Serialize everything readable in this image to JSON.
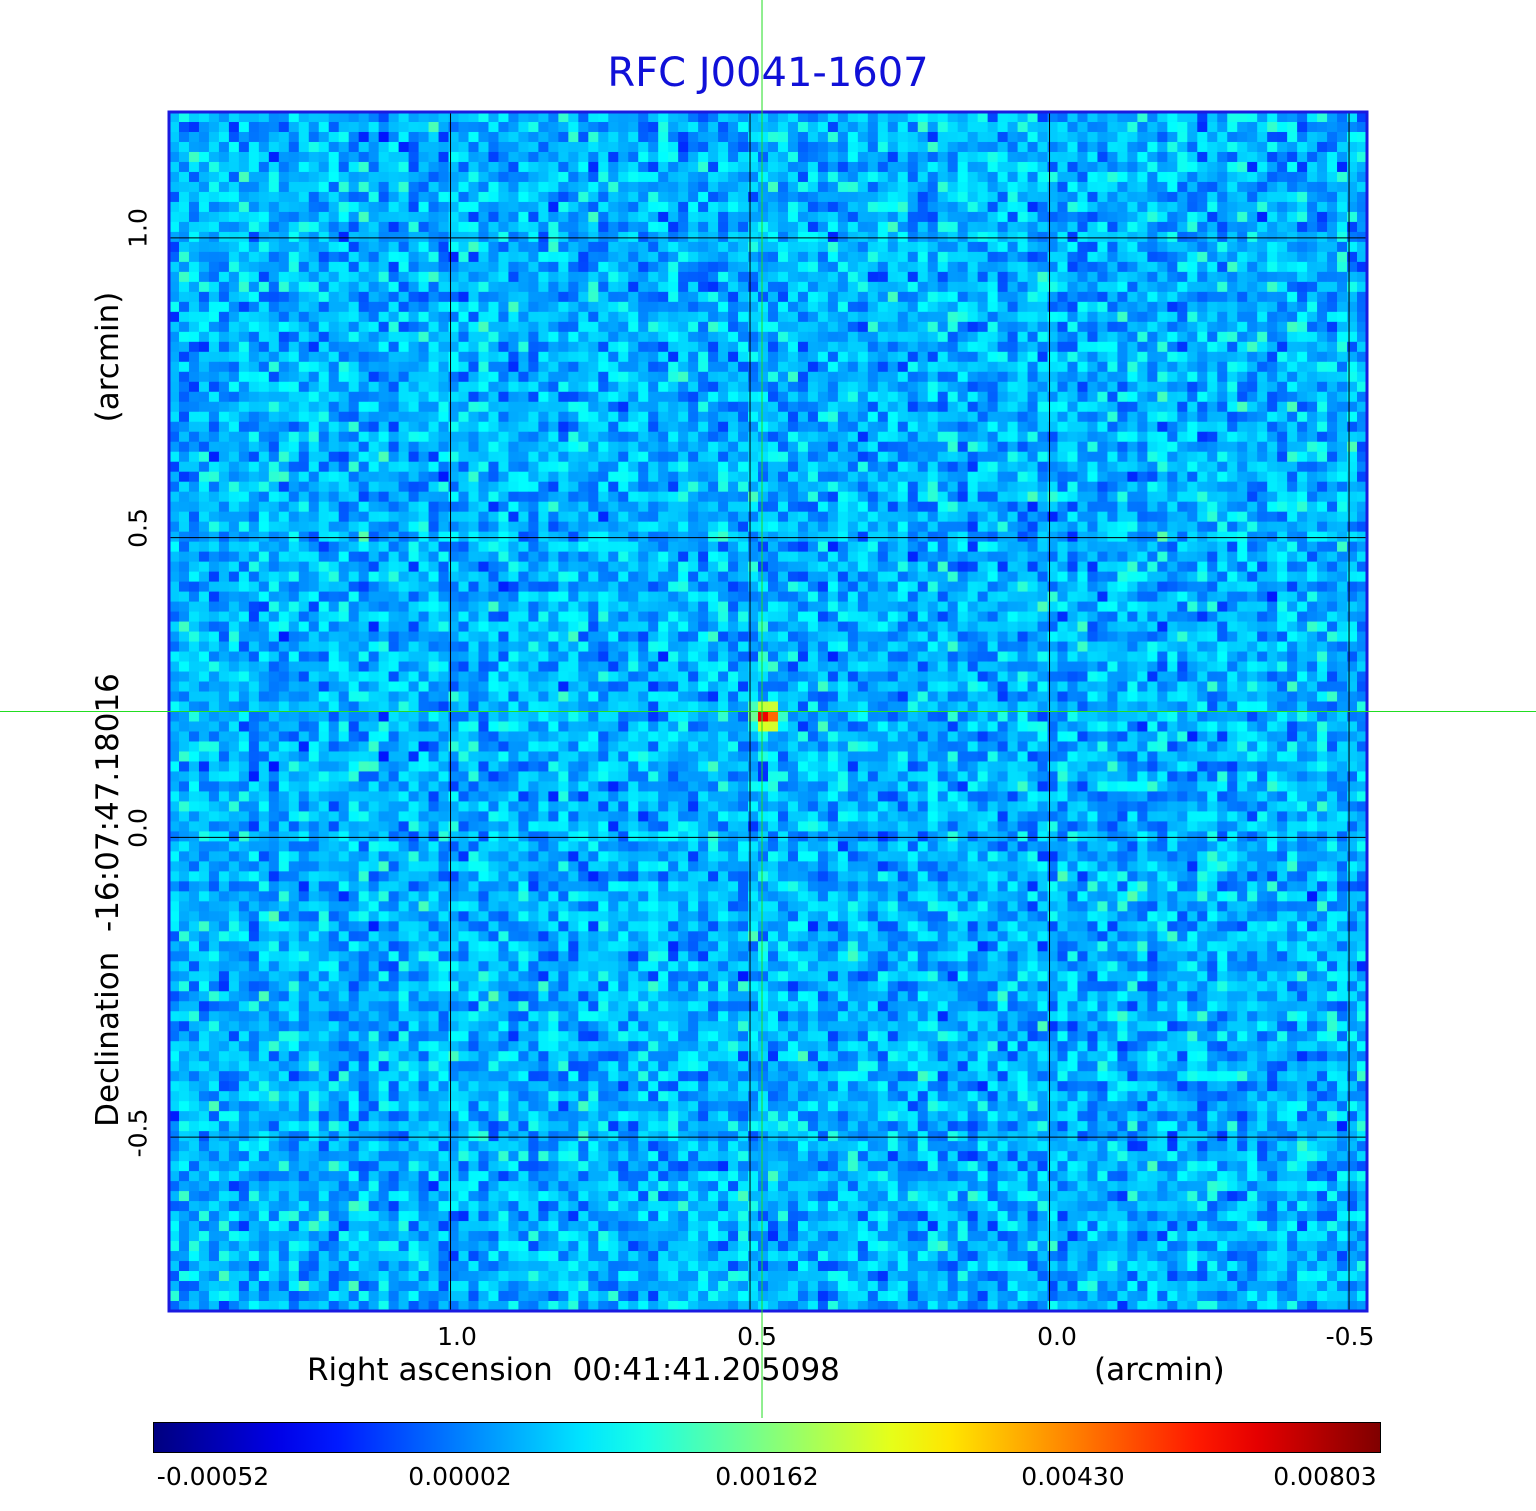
{
  "chart_data": {
    "type": "heatmap",
    "title": "RFC J0041-1607",
    "xlabel": "Right ascension  00:41:41.205098",
    "xunit": "(arcmin)",
    "ylabel": "Declination  -16:07:47.18016",
    "yunit": "(arcmin)",
    "x_ticks": [
      "1.0",
      "0.5",
      "0.0",
      "-0.5"
    ],
    "y_ticks": [
      "1.0",
      "0.5",
      "0.0",
      "-0.5"
    ],
    "xlim": [
      1.47,
      -0.53
    ],
    "ylim": [
      -0.79,
      1.21
    ],
    "grid": true,
    "source_peak": {
      "x": 0.48,
      "y": 0.21,
      "value": 0.00803
    },
    "crosshair": {
      "x": 0.48,
      "y": 0.21
    },
    "colorbar": {
      "ticks": [
        "-0.00052",
        "0.00002",
        "0.00162",
        "0.00430",
        "0.00803"
      ],
      "colormap": "jet"
    }
  },
  "colors": {
    "title": "#1010d8",
    "frame": "#1a1ae0",
    "grid": "#000000",
    "crosshair": "#22dd22",
    "background_noise": "#2a8cf0"
  }
}
